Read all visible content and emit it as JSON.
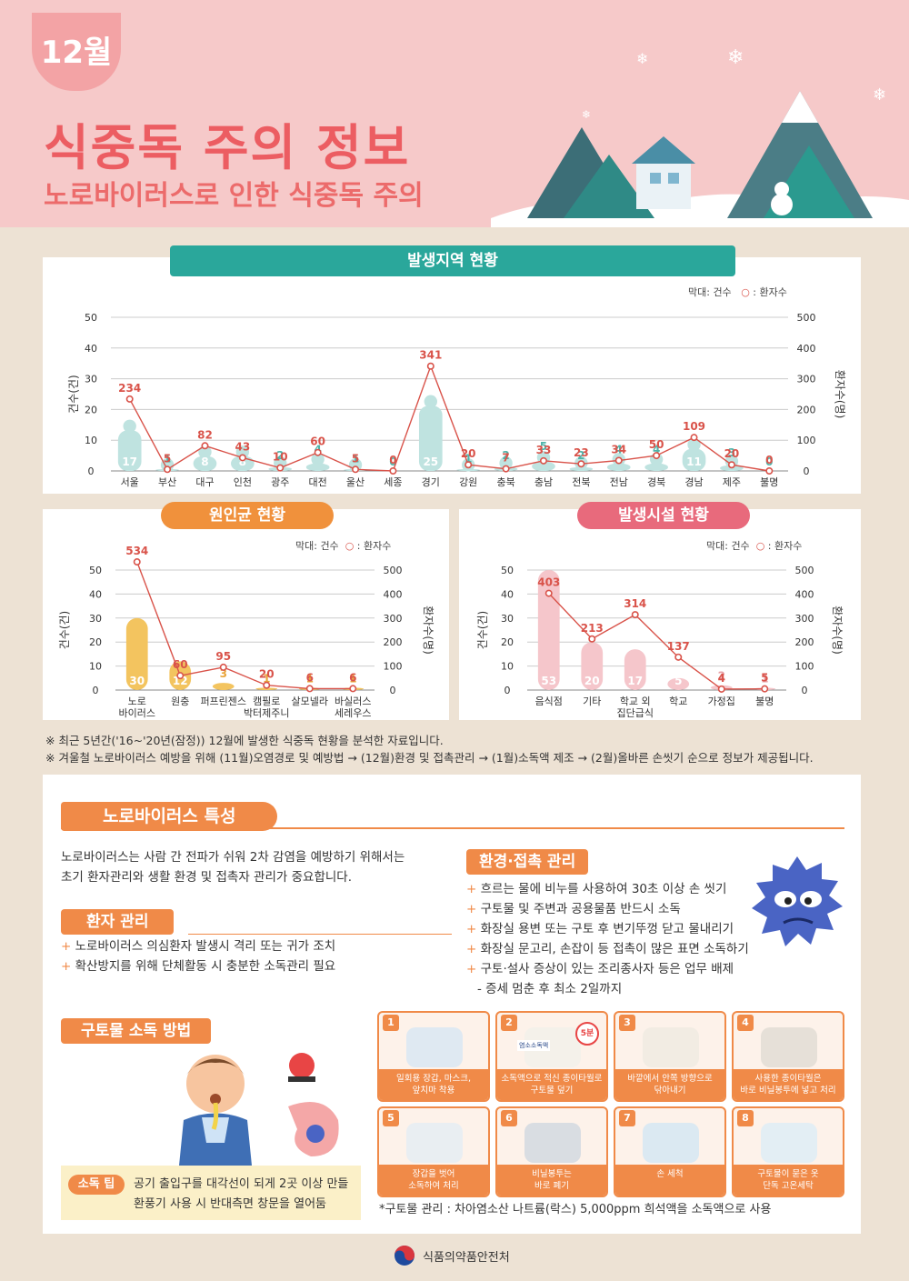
{
  "header": {
    "month": "12월",
    "title": "식중독 주의 정보",
    "subtitle": "노로바이러스로 인한 식중독 주의"
  },
  "region_chart": {
    "title": "발생지역 현황",
    "legend_bar": "막대: 건수",
    "legend_line": "환자수",
    "ylabel_left": "건수(건)",
    "ylabel_right": "환자수(명)",
    "chart_data": {
      "type": "bar",
      "categories": [
        "서울",
        "부산",
        "대구",
        "인천",
        "광주",
        "대전",
        "울산",
        "세종",
        "경기",
        "강원",
        "충북",
        "충남",
        "전북",
        "전남",
        "경북",
        "경남",
        "제주",
        "불명"
      ],
      "series": [
        {
          "name": "건수",
          "values": [
            17,
            1,
            8,
            8,
            2,
            4,
            1,
            0,
            25,
            1,
            2,
            5,
            2,
            4,
            4,
            11,
            3,
            0
          ]
        },
        {
          "name": "환자수",
          "values": [
            234,
            5,
            82,
            43,
            10,
            60,
            5,
            0,
            341,
            20,
            7,
            33,
            23,
            34,
            50,
            109,
            20,
            0
          ]
        }
      ],
      "ylim_left": [
        0,
        50
      ],
      "ylim_right": [
        0,
        500
      ],
      "yticks_left": [
        "0",
        "10",
        "20",
        "30",
        "40",
        "50"
      ],
      "yticks_right": [
        "0",
        "100",
        "200",
        "300",
        "400",
        "500"
      ]
    }
  },
  "pathogen_chart": {
    "title": "원인균 현황",
    "legend_bar": "막대: 건수",
    "legend_line": "환자수",
    "ylabel_left": "건수(건)",
    "ylabel_right": "환자수(명)",
    "chart_data": {
      "type": "bar",
      "categories": [
        "노로\n바이러스",
        "원충",
        "퍼프린젠스",
        "캠필로\n박터제주니",
        "살모넬라",
        "바실러스\n세레우스"
      ],
      "series": [
        {
          "name": "건수",
          "values": [
            30,
            12,
            3,
            1,
            1,
            1
          ]
        },
        {
          "name": "환자수",
          "values": [
            534,
            60,
            95,
            20,
            6,
            6
          ]
        }
      ],
      "ylim_left": [
        0,
        50
      ],
      "ylim_right": [
        0,
        500
      ],
      "yticks_left": [
        "0",
        "10",
        "20",
        "30",
        "40",
        "50"
      ],
      "yticks_right": [
        "0",
        "100",
        "200",
        "300",
        "400",
        "500"
      ]
    }
  },
  "facility_chart": {
    "title": "발생시설 현황",
    "legend_bar": "막대: 건수",
    "legend_line": "환자수",
    "ylabel_left": "건수(건)",
    "ylabel_right": "환자수(명)",
    "chart_data": {
      "type": "bar",
      "categories": [
        "음식점",
        "기타",
        "학교 외\n집단급식",
        "학교",
        "가정집",
        "불명"
      ],
      "series": [
        {
          "name": "건수",
          "values": [
            53,
            20,
            17,
            5,
            2,
            1
          ]
        },
        {
          "name": "환자수",
          "values": [
            403,
            213,
            314,
            137,
            4,
            5
          ]
        }
      ],
      "ylim_left": [
        0,
        50
      ],
      "ylim_right": [
        0,
        500
      ],
      "yticks_left": [
        "0",
        "10",
        "20",
        "30",
        "40",
        "50"
      ],
      "yticks_right": [
        "0",
        "100",
        "200",
        "300",
        "400",
        "500"
      ]
    }
  },
  "notes": [
    "※ 최근 5년간('16~'20년(잠정)) 12월에 발생한 식중독 현황을 분석한 자료입니다.",
    "※ 겨울철 노로바이러스 예방을 위해 (11월)오염경로 및 예방법 → (12월)환경 및 접촉관리 → (1월)소독액 제조 → (2월)올바른 손씻기 순으로 정보가 제공됩니다."
  ],
  "characteristics": {
    "title": "노로바이러스 특성",
    "intro": [
      "노로바이러스는 사람 간 전파가 쉬워 2차 감염을 예방하기 위해서는",
      "초기 환자관리와 생활 환경 및 접촉자 관리가 중요합니다."
    ]
  },
  "patient": {
    "title": "환자 관리",
    "items": [
      "노로바이러스 의심환자 발생시 격리 또는 귀가 조치",
      "확산방지를 위해 단체활동 시 충분한 소독관리 필요"
    ]
  },
  "environment": {
    "title": "환경·접촉 관리",
    "items": [
      "흐르는 물에 비누를 사용하여 30초 이상 손 씻기",
      "구토물 및 주변과 공용물품 반드시 소독",
      "화장실 용변 또는 구토 후 변기뚜껑 닫고 물내리기",
      "화장실 문고리, 손잡이 등 접촉이 많은 표면 소독하기",
      "구토·설사 증상이 있는 조리종사자 등은 업무 배제"
    ],
    "sub": "- 증세 멈춘 후 최소 2일까지"
  },
  "vomit": {
    "title": "구토물 소독 방법",
    "tip_label": "소독 팁",
    "tip_lines": [
      "공기 출입구를 대각선이 되게 2곳 이상 만들",
      "환풍기 사용 시 반대측면 창문을 열어둠"
    ],
    "steps": [
      {
        "num": "1",
        "caption": "일회용 장갑, 마스크,\n앞치마 착용"
      },
      {
        "num": "2",
        "caption": "소독액으로 적신 종이타월로\n구토물 덮기"
      },
      {
        "num": "3",
        "caption": "바깥에서 안쪽 방향으로\n닦아내기"
      },
      {
        "num": "4",
        "caption": "사용한 종이타월은\n바로 비닐봉투에 넣고 처리"
      },
      {
        "num": "5",
        "caption": "장갑을 벗어\n소독하여 처리"
      },
      {
        "num": "6",
        "caption": "비닐봉투는\n바로 폐기"
      },
      {
        "num": "7",
        "caption": "손 세척"
      },
      {
        "num": "8",
        "caption": "구토물이 묻은 옷\n단독 고온세탁"
      }
    ],
    "step2_timer": "5분",
    "step2_bottle": "염소소독액",
    "footnote": "*구토물 관리 : 차아염소산 나트륨(락스) 5,000ppm 희석액을 소독액으로 사용"
  },
  "footer": {
    "org": "식품의약품안전처"
  },
  "colors": {
    "header_bg": "#f6c9c9",
    "title": "#ec5d62",
    "teal": "#2aa79b",
    "orange": "#f0913c",
    "pink": "#e86a7c",
    "line": "#d9534a"
  }
}
